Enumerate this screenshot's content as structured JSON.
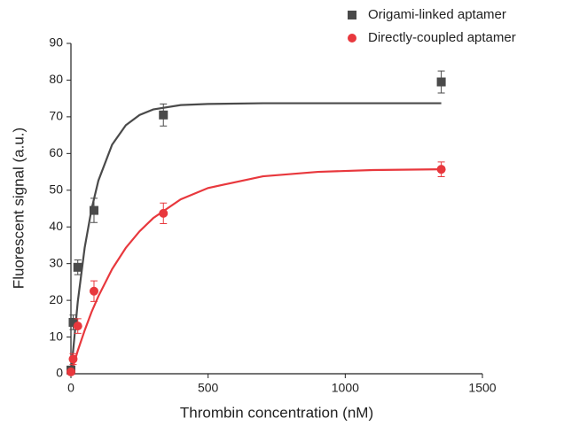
{
  "chart_data": {
    "type": "scatter",
    "xlabel": "Thrombin concentration (nM)",
    "ylabel": "Fluorescent signal (a.u.)",
    "xlim": [
      0,
      1500
    ],
    "xticks": [
      0,
      500,
      1000,
      1500
    ],
    "ylim": [
      0,
      90
    ],
    "yticks": [
      0,
      10,
      20,
      30,
      40,
      50,
      60,
      70,
      80,
      90
    ],
    "legend": "upper right",
    "series": [
      {
        "name": "Origami-linked aptamer",
        "color": "#4a4a4a",
        "marker": "square",
        "x": [
          0,
          8,
          25,
          84,
          337,
          1350
        ],
        "values": [
          1,
          14,
          29,
          44.5,
          70.5,
          79.5
        ],
        "errors": [
          1,
          2,
          2,
          3.3,
          3,
          3
        ]
      },
      {
        "name": "Directly-coupled aptamer",
        "color": "#e8383d",
        "marker": "circle",
        "x": [
          0,
          8,
          25,
          84,
          337,
          1350
        ],
        "values": [
          0.5,
          4,
          13,
          22.5,
          43.7,
          55.7
        ],
        "errors": [
          0.5,
          1.5,
          2,
          2.8,
          2.8,
          2
        ]
      }
    ],
    "fits": [
      {
        "color": "#4a4a4a",
        "x": [
          0,
          25,
          50,
          75,
          100,
          150,
          200,
          250,
          300,
          400,
          500,
          700,
          900,
          1100,
          1350
        ],
        "values": [
          0,
          19.7,
          34.3,
          44.8,
          52.6,
          62.4,
          67.7,
          70.5,
          72.0,
          73.2,
          73.5,
          73.7,
          73.7,
          73.7,
          73.7
        ]
      },
      {
        "color": "#e8383d",
        "x": [
          0,
          25,
          50,
          75,
          100,
          150,
          200,
          250,
          300,
          400,
          500,
          700,
          900,
          1100,
          1350
        ],
        "values": [
          0,
          6.3,
          11.8,
          16.8,
          21.1,
          28.5,
          34.3,
          38.8,
          42.4,
          47.5,
          50.6,
          53.8,
          55.0,
          55.5,
          55.7
        ]
      }
    ]
  }
}
